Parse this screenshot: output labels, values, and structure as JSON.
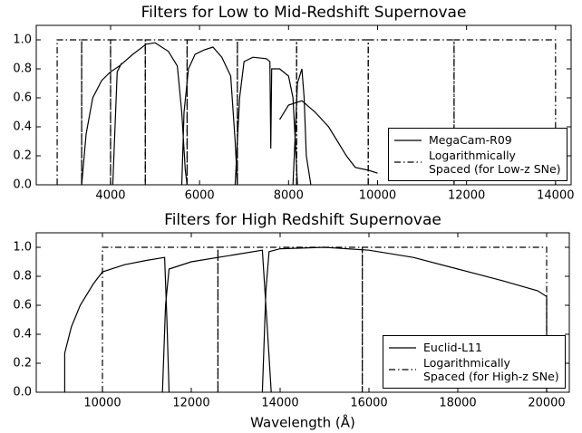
{
  "chart_data": [
    {
      "type": "line",
      "title": "Filters for Low to Mid-Redshift Supernovae",
      "xlim": [
        2330,
        14350
      ],
      "xticks": [
        4000,
        6000,
        8000,
        10000,
        12000,
        14000
      ],
      "ylim": [
        0,
        1.1
      ],
      "yticks": [
        {
          "value": 0,
          "label": "0.0"
        },
        {
          "value": 0.2,
          "label": "0.2"
        },
        {
          "value": 0.4,
          "label": "0.4"
        },
        {
          "value": 0.6,
          "label": "0.6"
        },
        {
          "value": 0.8,
          "label": "0.8"
        },
        {
          "value": 1,
          "label": "1.0"
        }
      ],
      "legend": "lower right",
      "series": [
        {
          "name": "MegaCam-R09",
          "color": "#000000",
          "style": "solid",
          "x": [
            3350,
            3450,
            3600,
            3800,
            4000,
            4200,
            4500,
            4800,
            5000,
            5300,
            5500,
            5600,
            5680,
            5720,
            null,
            4050,
            4100,
            4150,
            4250,
            null,
            5600,
            5650,
            5750,
            5900,
            6100,
            6300,
            6500,
            6700,
            6800,
            6850,
            null,
            6800,
            6900,
            7000,
            7200,
            7500,
            7580,
            7600,
            7620,
            7800,
            8000,
            8100,
            8150,
            8200,
            null,
            7800,
            8000,
            8300,
            8600,
            8900,
            9100,
            9300,
            9500,
            9800,
            10000,
            null,
            8100,
            8200,
            8300,
            8350,
            8400,
            8500
          ],
          "values": [
            0,
            0.35,
            0.6,
            0.72,
            0.78,
            0.82,
            0.9,
            0.97,
            0.98,
            0.92,
            0.82,
            0.5,
            0.1,
            0,
            null,
            0,
            0.4,
            0.78,
            0.84,
            null,
            0,
            0.5,
            0.8,
            0.9,
            0.93,
            0.95,
            0.88,
            0.75,
            0.3,
            0,
            null,
            0,
            0.6,
            0.85,
            0.88,
            0.87,
            0.85,
            0.25,
            0.8,
            0.8,
            0.75,
            0.6,
            0.3,
            0,
            null,
            0.45,
            0.55,
            0.58,
            0.5,
            0.4,
            0.3,
            0.2,
            0.12,
            0.1,
            0.08,
            null,
            0,
            0.7,
            0.8,
            0.6,
            0.2,
            0
          ]
        },
        {
          "name": "Logarithmically\nSpaced (for Low-z SNe)",
          "color": "#000000",
          "style": "dashdot",
          "bins": [
            2800,
            3350,
            4000,
            4780,
            5720,
            6850,
            8180,
            9790,
            11720,
            14000
          ],
          "values": [
            1,
            1,
            1,
            1,
            1,
            1,
            1,
            1,
            1
          ]
        }
      ]
    },
    {
      "type": "line",
      "title": "Filters for High Redshift Supernovae",
      "xlabel": "Wavelength (Å)",
      "xlim": [
        8510,
        20510
      ],
      "xticks": [
        10000,
        12000,
        14000,
        16000,
        18000,
        20000
      ],
      "ylim": [
        0,
        1.1
      ],
      "yticks": [
        {
          "value": 0,
          "label": "0.0"
        },
        {
          "value": 0.2,
          "label": "0.2"
        },
        {
          "value": 0.4,
          "label": "0.4"
        },
        {
          "value": 0.6,
          "label": "0.6"
        },
        {
          "value": 0.8,
          "label": "0.8"
        },
        {
          "value": 1,
          "label": "1.0"
        }
      ],
      "legend": "lower right",
      "series": [
        {
          "name": "Euclid-L11",
          "color": "#000000",
          "style": "solid",
          "x": [
            9150,
            9150,
            9300,
            9500,
            9800,
            10000,
            10500,
            11000,
            11400,
            11450,
            11500,
            null,
            11350,
            11420,
            11500,
            12000,
            13000,
            13600,
            13700,
            13800,
            null,
            13600,
            13680,
            13750,
            14000,
            15000,
            16000,
            17000,
            18000,
            19000,
            19800,
            20000,
            20000
          ],
          "values": [
            0,
            0.27,
            0.45,
            0.6,
            0.75,
            0.83,
            0.88,
            0.91,
            0.93,
            0.5,
            0,
            null,
            0,
            0.6,
            0.85,
            0.9,
            0.95,
            0.98,
            0.5,
            0,
            null,
            0,
            0.7,
            0.97,
            0.99,
            1,
            0.98,
            0.93,
            0.85,
            0.77,
            0.7,
            0.66,
            0
          ]
        },
        {
          "name": "Logarithmically\nSpaced (for High-z SNe)",
          "color": "#000000",
          "style": "dashdot",
          "bins": [
            10000,
            12600,
            15850,
            20000
          ],
          "values": [
            1,
            1,
            1
          ]
        }
      ]
    }
  ]
}
